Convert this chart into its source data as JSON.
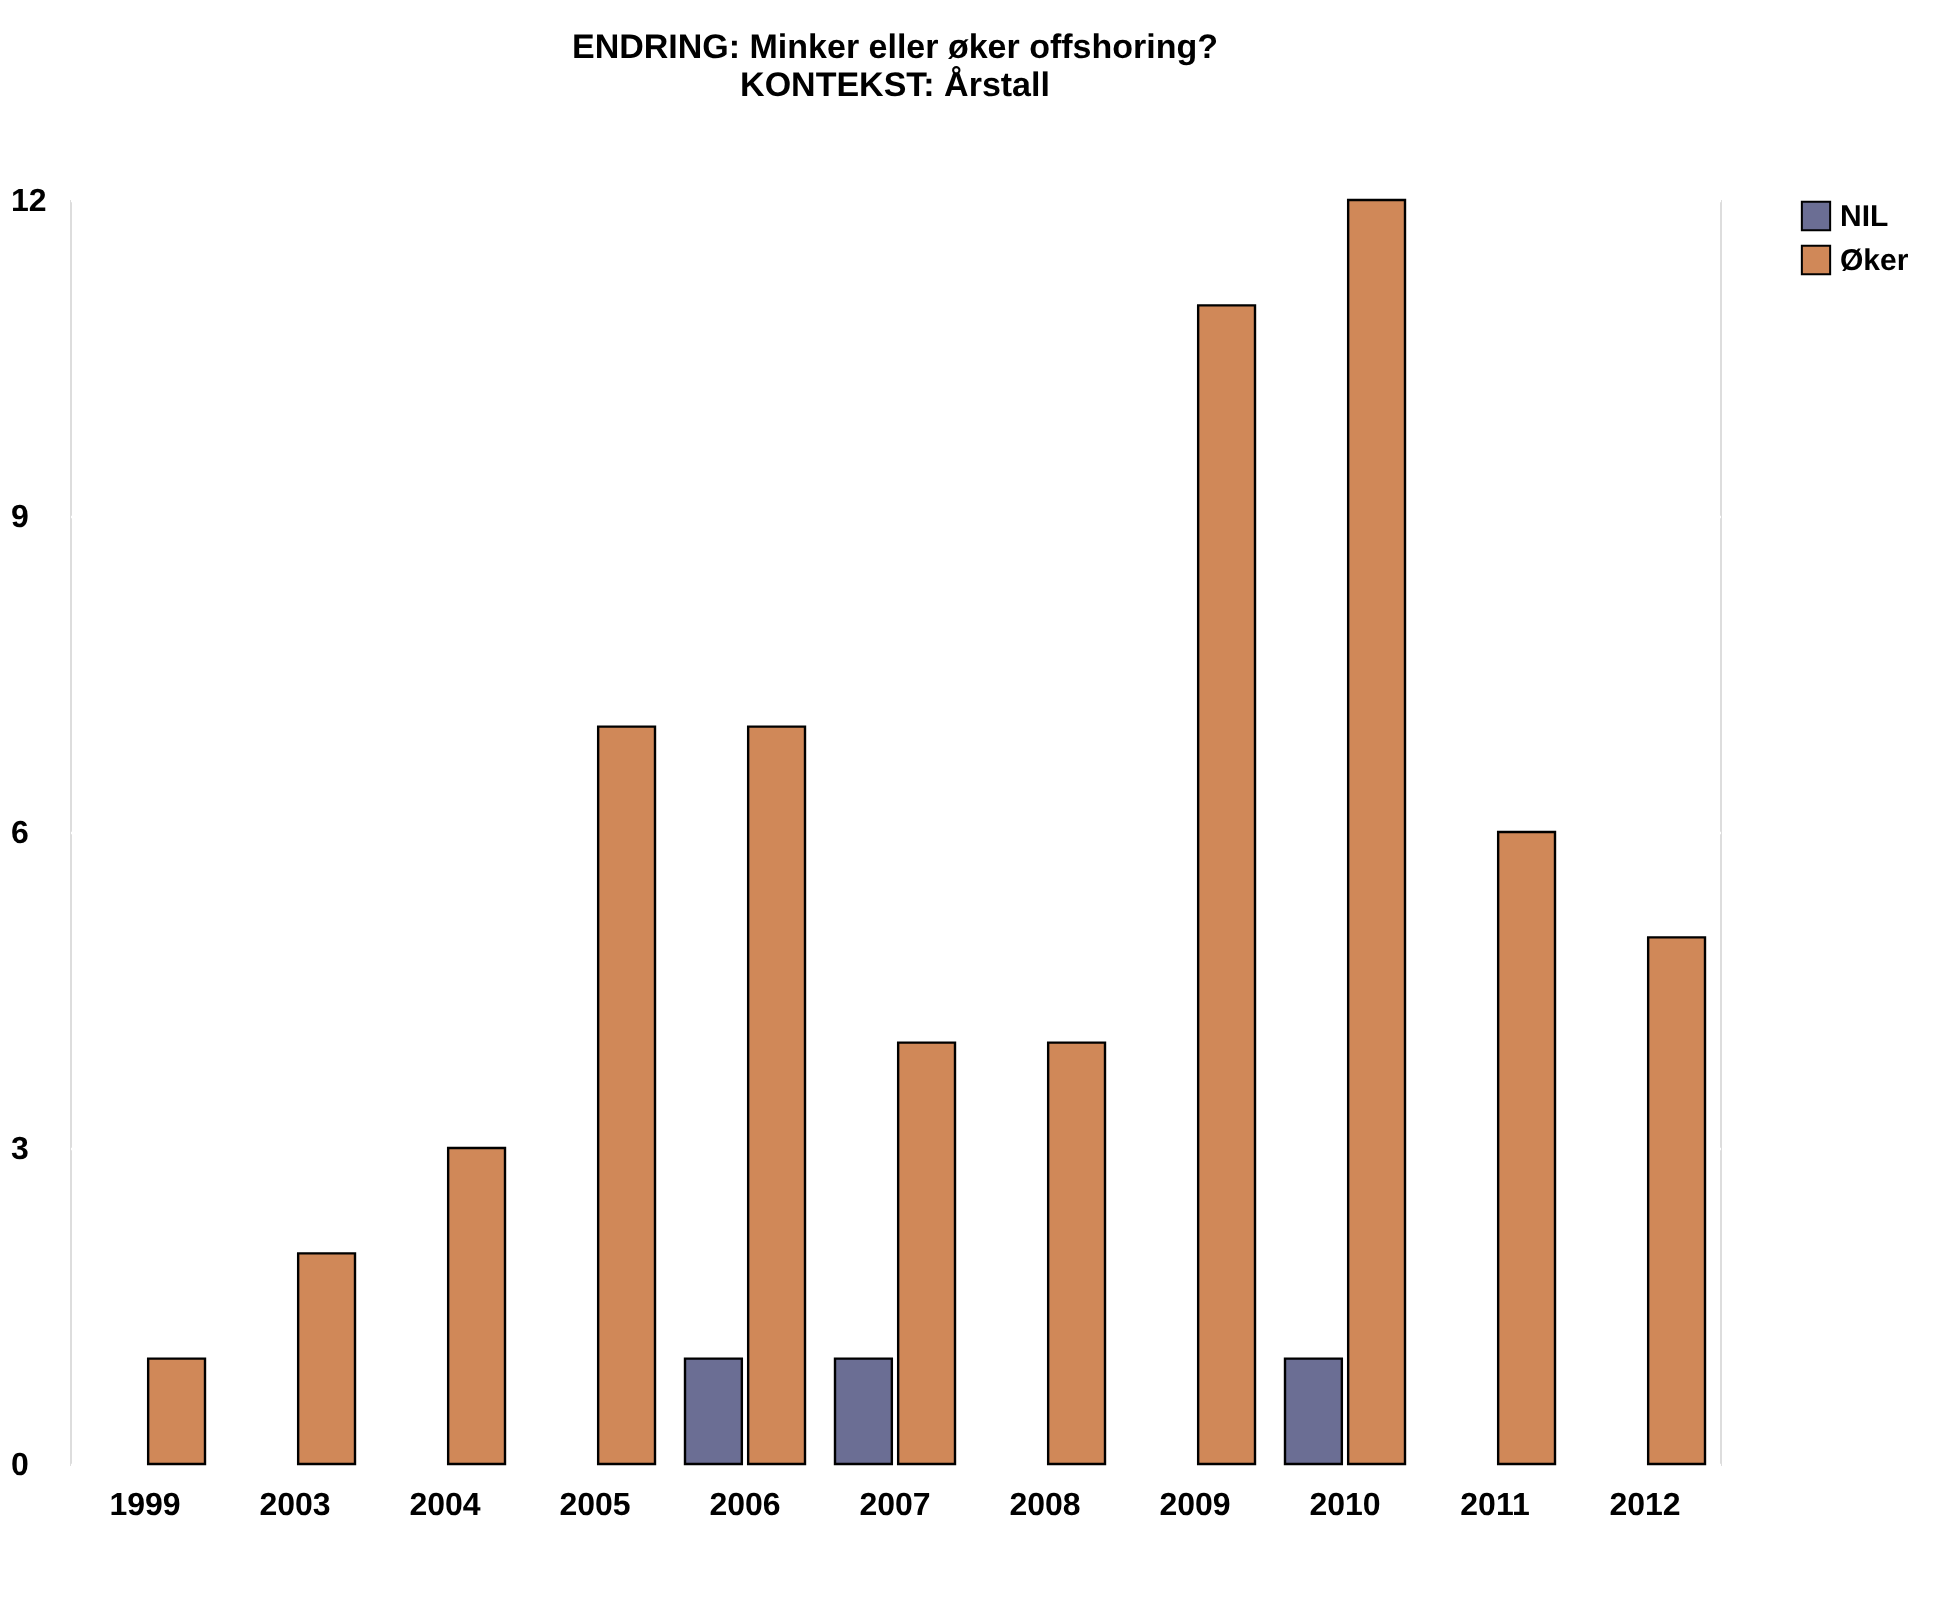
{
  "chart_data": {
    "type": "bar",
    "title": [
      "ENDRING: Minker eller øker offshoring?",
      "KONTEKST: Årstall"
    ],
    "categories": [
      "1999",
      "2003",
      "2004",
      "2005",
      "2006",
      "2007",
      "2008",
      "2009",
      "2010",
      "2011",
      "2012"
    ],
    "series": [
      {
        "name": "NIL",
        "color": "#6b6e94",
        "values": [
          null,
          null,
          null,
          null,
          1,
          1,
          null,
          null,
          1,
          null,
          null
        ]
      },
      {
        "name": "Øker",
        "color": "#d08858",
        "values": [
          1,
          2,
          3,
          7,
          7,
          4,
          4,
          11,
          12,
          6,
          5
        ]
      }
    ],
    "ylim": [
      0,
      12
    ],
    "yticks": [
      0,
      3,
      6,
      9,
      12
    ],
    "grid": "y",
    "legend": "top right"
  }
}
